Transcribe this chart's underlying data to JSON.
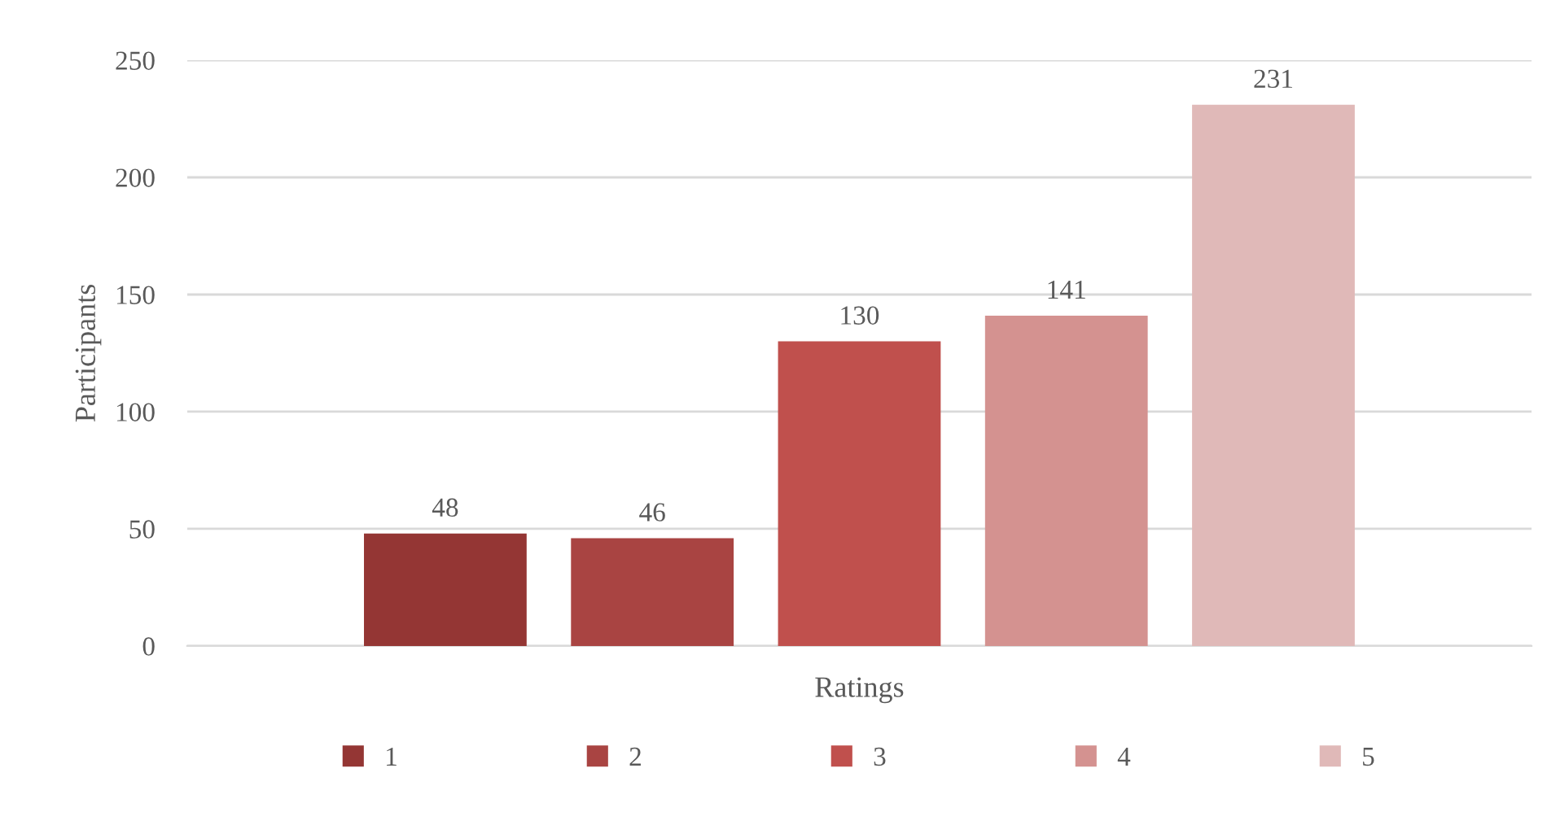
{
  "chart_data": {
    "type": "bar",
    "xlabel": "Ratings",
    "ylabel": "Participants",
    "categories": [
      null
    ],
    "series": [
      {
        "name": "1",
        "color": "#943634",
        "values": [
          48
        ]
      },
      {
        "name": "2",
        "color": "#a94442",
        "values": [
          46
        ]
      },
      {
        "name": "3",
        "color": "#c0504d",
        "values": [
          130
        ]
      },
      {
        "name": "4",
        "color": "#d49290",
        "values": [
          141
        ]
      },
      {
        "name": "5",
        "color": "#e0b9b8",
        "values": [
          231
        ]
      }
    ],
    "ylim": [
      0,
      250
    ],
    "yticks": [
      0,
      50,
      100,
      150,
      200,
      250
    ],
    "grid": "y",
    "legend": "bottom",
    "data_labels": true
  }
}
